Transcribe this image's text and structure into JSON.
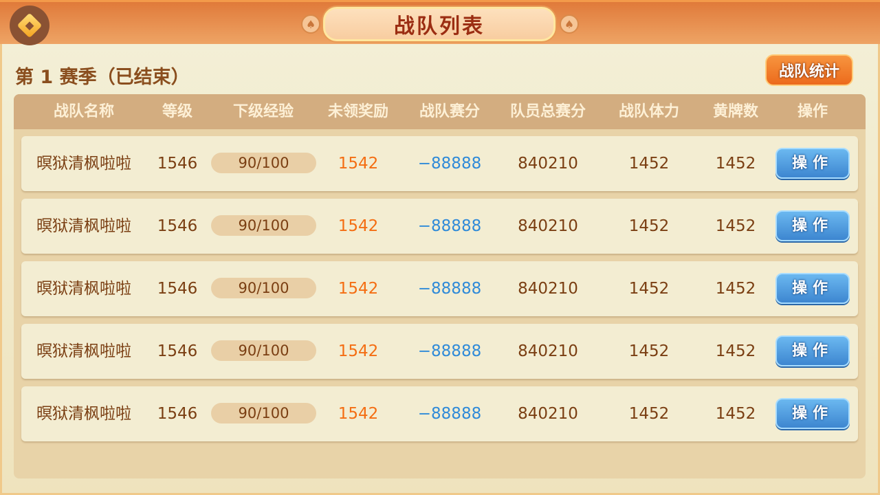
{
  "header": {
    "title": "战队列表",
    "back_icon": "back-diamond-icon",
    "ornament_icon": "spade-icon"
  },
  "season_title": "第 1 赛季（已结束）",
  "stats_button": "战队统计",
  "table": {
    "columns": [
      "战队名称",
      "等级",
      "下级经验",
      "未领奖励",
      "战队赛分",
      "队员总赛分",
      "战队体力",
      "黄牌数",
      "操作"
    ],
    "rows": [
      {
        "name": "暝狱清枫啦啦",
        "level": "1546",
        "exp": "90/100",
        "exp_fraction": 0.9,
        "reward": "1542",
        "team_score": "−88888",
        "member_score": "840210",
        "stamina": "1452",
        "yellow": "1452",
        "action": "操作"
      },
      {
        "name": "暝狱清枫啦啦",
        "level": "1546",
        "exp": "90/100",
        "exp_fraction": 0.9,
        "reward": "1542",
        "team_score": "−88888",
        "member_score": "840210",
        "stamina": "1452",
        "yellow": "1452",
        "action": "操作"
      },
      {
        "name": "暝狱清枫啦啦",
        "level": "1546",
        "exp": "90/100",
        "exp_fraction": 0.9,
        "reward": "1542",
        "team_score": "−88888",
        "member_score": "840210",
        "stamina": "1452",
        "yellow": "1452",
        "action": "操作"
      },
      {
        "name": "暝狱清枫啦啦",
        "level": "1546",
        "exp": "90/100",
        "exp_fraction": 0.9,
        "reward": "1542",
        "team_score": "−88888",
        "member_score": "840210",
        "stamina": "1452",
        "yellow": "1452",
        "action": "操作"
      },
      {
        "name": "暝狱清枫啦啦",
        "level": "1546",
        "exp": "90/100",
        "exp_fraction": 0.9,
        "reward": "1542",
        "team_score": "−88888",
        "member_score": "840210",
        "stamina": "1452",
        "yellow": "1452",
        "action": "操作"
      }
    ]
  },
  "colors": {
    "header": "#e07a3a",
    "reward": "#f46d12",
    "score": "#2f8ad8",
    "text": "#7a3e12",
    "action_button": "#3d86d0",
    "stats_button": "#ec6a1c"
  }
}
